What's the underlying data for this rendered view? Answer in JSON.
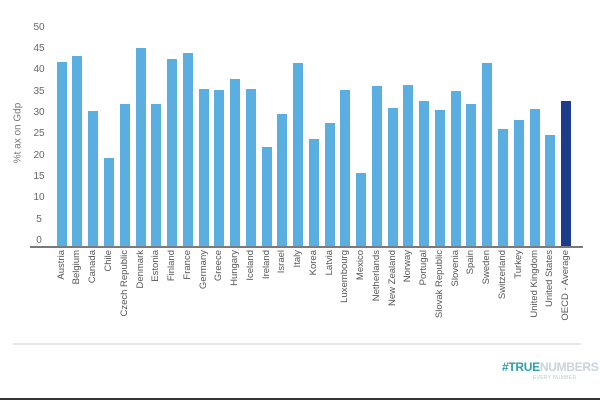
{
  "chart_data": {
    "type": "bar",
    "title": "",
    "xlabel": "",
    "ylabel": "%t ax on Gdp",
    "ylim": [
      0,
      50
    ],
    "yticks": [
      0,
      5,
      10,
      15,
      20,
      25,
      30,
      35,
      40,
      45,
      50
    ],
    "grid": false,
    "legend": null,
    "categories": [
      "Austria",
      "Belgium",
      "Canada",
      "Chile",
      "Czech Republic",
      "Denmark",
      "Estonia",
      "Finland",
      "France",
      "Germany",
      "Greece",
      "Hungary",
      "Iceland",
      "Ireland",
      "Israel",
      "Italy",
      "Korea",
      "Latvia",
      "Luxembourg",
      "Mexico",
      "Netherlands",
      "New Zealand",
      "Norway",
      "Portugal",
      "Slovak Republic",
      "Slovenia",
      "Spain",
      "Sweden",
      "Switzerland",
      "Turkey",
      "United Kingdom",
      "United States",
      "OECD - Average"
    ],
    "values": [
      42.0,
      43.3,
      30.4,
      19.4,
      32.0,
      45.3,
      32.2,
      42.6,
      44.0,
      35.5,
      35.3,
      38.0,
      35.7,
      22.1,
      29.8,
      41.8,
      23.9,
      27.6,
      35.4,
      15.9,
      36.4,
      31.2,
      36.5,
      32.9,
      30.7,
      35.1,
      32.2,
      41.8,
      26.3,
      28.3,
      31.0,
      24.9,
      32.8
    ],
    "colors": {
      "default": "#5aafe0",
      "highlight": "#1d3c8a"
    },
    "highlight_index": 32
  },
  "branding": {
    "logo_part1": "#TRUE",
    "logo_part2": "NUMBERS",
    "tagline": "EVERY NUMBER"
  }
}
